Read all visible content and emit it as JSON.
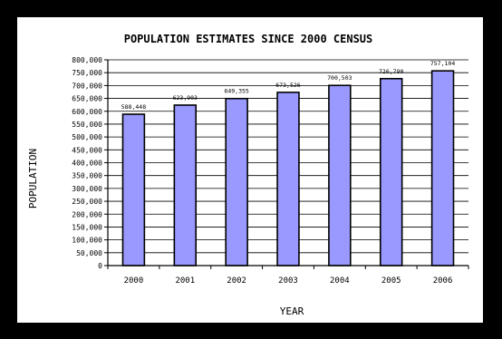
{
  "chart_data": {
    "type": "bar",
    "title": "POPULATION ESTIMATES SINCE 2000 CENSUS",
    "xlabel": "YEAR",
    "ylabel": "POPULATION",
    "categories": [
      "2000",
      "2001",
      "2002",
      "2003",
      "2004",
      "2005",
      "2006"
    ],
    "values": [
      588448,
      623903,
      649355,
      673526,
      700503,
      726790,
      757104
    ],
    "data_labels": [
      "588,448",
      "623,903",
      "649,355",
      "673,526",
      "700,503",
      "726,790",
      "757,104"
    ],
    "ylim": [
      0,
      800000
    ],
    "y_ticks": [
      0,
      50000,
      100000,
      150000,
      200000,
      250000,
      300000,
      350000,
      400000,
      450000,
      500000,
      550000,
      600000,
      650000,
      700000,
      750000,
      800000
    ],
    "y_tick_labels": [
      "0",
      "50,000",
      "100,000",
      "150,000",
      "200,000",
      "250,000",
      "300,000",
      "350,000",
      "400,000",
      "450,000",
      "500,000",
      "550,000",
      "600,000",
      "650,000",
      "700,000",
      "750,000",
      "800,000"
    ],
    "grid": true,
    "legend": "none",
    "bar_color": "#9999ff",
    "bar_edge_color": "#000000",
    "frame_color": "#000000"
  }
}
